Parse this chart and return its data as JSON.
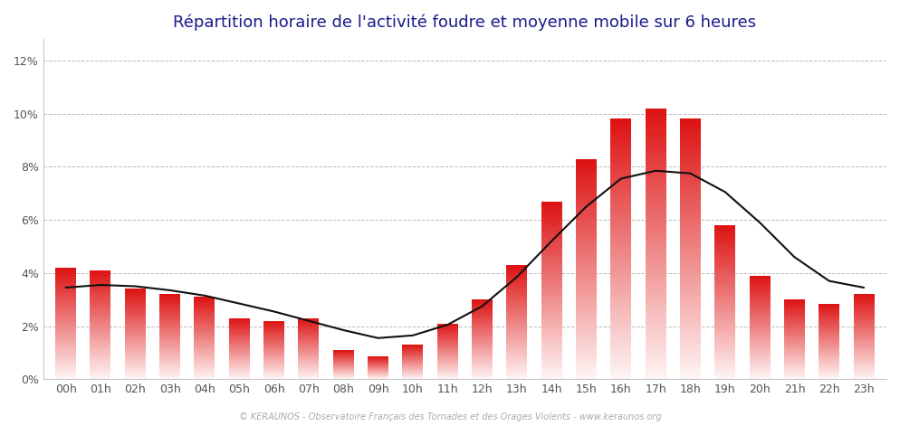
{
  "title": "Répartition horaire de l'activité foudre et moyenne mobile sur 6 heures",
  "hours": [
    "00h",
    "01h",
    "02h",
    "03h",
    "04h",
    "05h",
    "06h",
    "07h",
    "08h",
    "09h",
    "10h",
    "11h",
    "12h",
    "13h",
    "14h",
    "15h",
    "16h",
    "17h",
    "18h",
    "19h",
    "20h",
    "21h",
    "22h",
    "23h"
  ],
  "values": [
    4.2,
    4.1,
    3.4,
    3.2,
    3.1,
    2.3,
    2.2,
    2.3,
    1.1,
    0.85,
    1.3,
    2.1,
    3.0,
    4.3,
    6.7,
    8.3,
    9.8,
    10.2,
    9.8,
    5.8,
    3.9,
    3.0,
    2.85,
    3.2
  ],
  "moving_avg": [
    3.45,
    3.55,
    3.5,
    3.35,
    3.15,
    2.85,
    2.55,
    2.2,
    1.85,
    1.55,
    1.65,
    2.05,
    2.75,
    3.85,
    5.2,
    6.5,
    7.55,
    7.85,
    7.75,
    7.05,
    5.9,
    4.6,
    3.7,
    3.45
  ],
  "ylabel_ticks": [
    0,
    2,
    4,
    6,
    8,
    10,
    12
  ],
  "ylim": [
    0,
    12.8
  ],
  "background_color": "#ffffff",
  "bar_top_color": "#dd1111",
  "bar_bottom_color": "#fff5f5",
  "line_color": "#111111",
  "grid_color": "#bbbbbb",
  "title_color": "#1a1a8c",
  "tick_color": "#555555",
  "footer_text": "© KERAUNOS - Observatoire Français des Tornades et des Orages Violents - www.keraunos.org",
  "title_fontsize": 13,
  "tick_fontsize": 9,
  "footer_fontsize": 7
}
